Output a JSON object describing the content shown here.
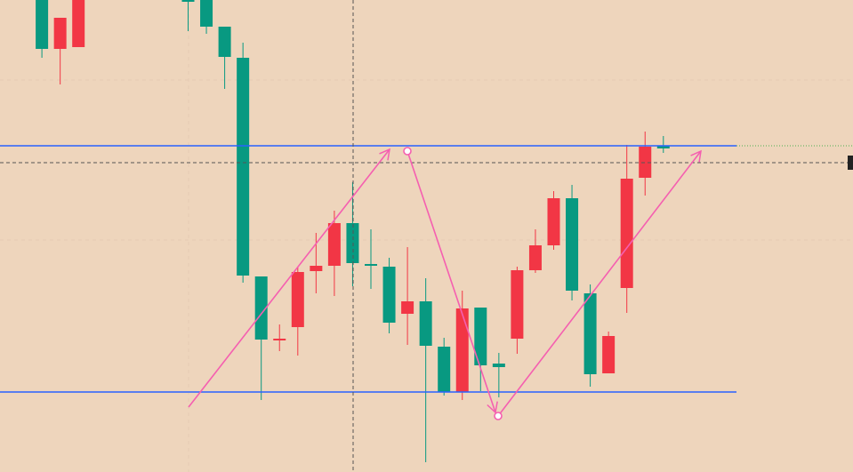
{
  "chart_data": {
    "type": "candlestick",
    "x": [
      2,
      3,
      4,
      10,
      11,
      12,
      13,
      14,
      15,
      16,
      17,
      18,
      19,
      20,
      21,
      22,
      23,
      24,
      25,
      26,
      27,
      28,
      29,
      30,
      31,
      32,
      33,
      34,
      35,
      36
    ],
    "open": [
      531,
      476,
      478,
      531,
      531,
      501,
      466,
      220,
      148,
      163,
      226,
      232,
      280,
      234,
      231,
      178,
      192,
      141,
      90,
      185,
      122,
      150,
      227,
      255,
      308,
      201,
      111,
      207,
      331,
      367
    ],
    "high": [
      531,
      511,
      531,
      531,
      531,
      501,
      483,
      220,
      166,
      231,
      269,
      294,
      326,
      273,
      241,
      253,
      218,
      151,
      204,
      185,
      134,
      231,
      273,
      316,
      323,
      211,
      158,
      368,
      383,
      378
    ],
    "low": [
      466,
      436,
      478,
      496,
      493,
      431,
      213,
      81,
      136,
      131,
      201,
      198,
      209,
      206,
      156,
      143,
      11,
      86,
      81,
      91,
      84,
      133,
      224,
      250,
      193,
      96,
      111,
      179,
      311,
      359
    ],
    "close": [
      476,
      511,
      531,
      530,
      501,
      467,
      221,
      149,
      150,
      225,
      232,
      280,
      235,
      232,
      168,
      192,
      142,
      90,
      184,
      120,
      118,
      227,
      255,
      308,
      204,
      110,
      153,
      330,
      366,
      364
    ],
    "up_color": "#f23645",
    "down_color": "#089981",
    "levels": [
      367,
      90
    ],
    "level_color": "#2962ff",
    "xlim": [
      -0.292,
      46.375
    ],
    "ylim": [
      0,
      531
    ]
  }
}
